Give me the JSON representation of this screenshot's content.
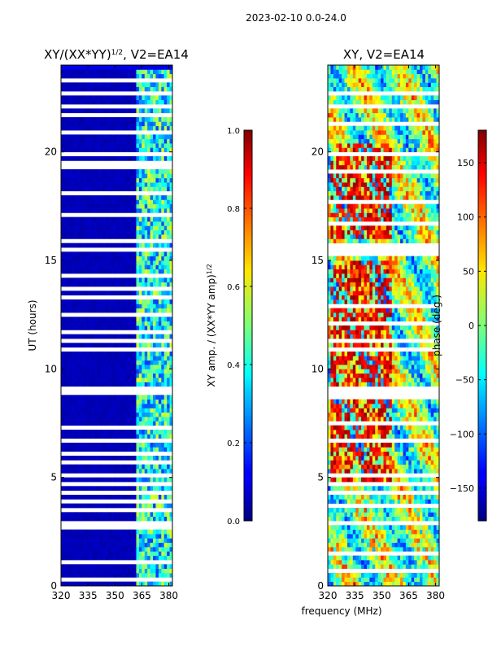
{
  "figure_title": "2023-02-10 0.0-24.0",
  "shared_xlabel": "frequency (MHz)",
  "colors": {
    "background": "#ffffff",
    "axis": "#000000",
    "flag": "#ffffff"
  },
  "chart_data": [
    {
      "type": "heatmap",
      "title": "XY/(XX*YY)",
      "title_exponent": "1/2",
      "title_suffix": ", V2=EA14",
      "xlabel": "",
      "ylabel": "UT (hours)",
      "xlim": [
        320,
        382
      ],
      "ylim": [
        0,
        24
      ],
      "xticks": [
        320,
        335,
        350,
        365,
        380
      ],
      "yticks": [
        0,
        5,
        10,
        15,
        20
      ],
      "colorscale": "jet",
      "colorbar": {
        "label": "XY amp. / (XX*YY amp)",
        "label_exponent": "1/2",
        "range": [
          0.0,
          1.0
        ],
        "ticks": [
          0.0,
          0.2,
          0.4,
          0.6,
          0.8,
          1.0
        ],
        "tick_labels": [
          "0.0",
          "0.2",
          "0.4",
          "0.6",
          "0.8",
          "1.0"
        ]
      },
      "description": "Amplitude near 0 below ~362 MHz; values 0.2-0.6 in 362-382 MHz band; horizontal white gaps are flagged times"
    },
    {
      "type": "heatmap",
      "title": "XY, V2=EA14",
      "xlabel": "",
      "ylabel": "",
      "xlim": [
        320,
        382
      ],
      "ylim": [
        0,
        24
      ],
      "xticks": [
        320,
        335,
        350,
        365,
        380
      ],
      "yticks": [
        0,
        5,
        10,
        15,
        20
      ],
      "colorscale": "jet",
      "colorbar": {
        "label": "phase (deg.)",
        "range": [
          -180,
          180
        ],
        "ticks": [
          -150,
          -100,
          -50,
          0,
          50,
          100,
          150
        ],
        "tick_labels": [
          "−150",
          "−100",
          "−50",
          "0",
          "50",
          "100",
          "150"
        ]
      },
      "description": "Phase values spanning -180 to 180 deg; strong red (~100-180) patches between 5-15 h and 16-20 h near 325-355 MHz"
    }
  ]
}
